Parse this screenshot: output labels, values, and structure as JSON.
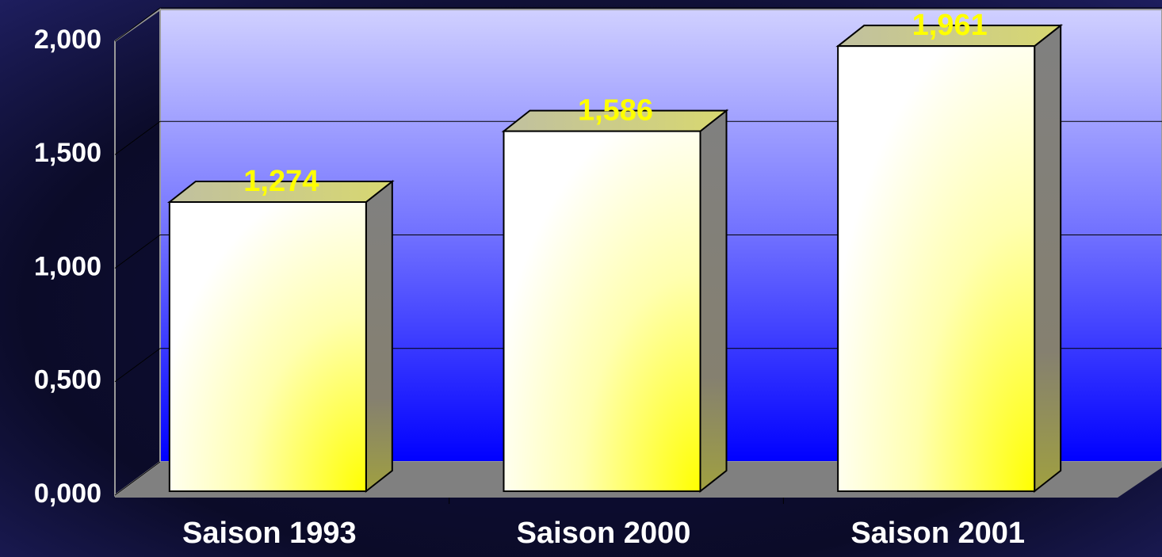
{
  "chart_data": {
    "type": "bar",
    "categories": [
      "Saison 1993",
      "Saison 2000",
      "Saison 2001"
    ],
    "values": [
      1.274,
      1.586,
      1.961
    ],
    "value_labels": [
      "1,274",
      "1,586",
      "1,961"
    ],
    "ylim": [
      0,
      2
    ],
    "yticks": [
      {
        "value": 0,
        "label": "0,000"
      },
      {
        "value": 0.5,
        "label": "0,500"
      },
      {
        "value": 1,
        "label": "1,000"
      },
      {
        "value": 1.5,
        "label": "1,500"
      },
      {
        "value": 2,
        "label": "2,000"
      }
    ],
    "grid": true
  }
}
